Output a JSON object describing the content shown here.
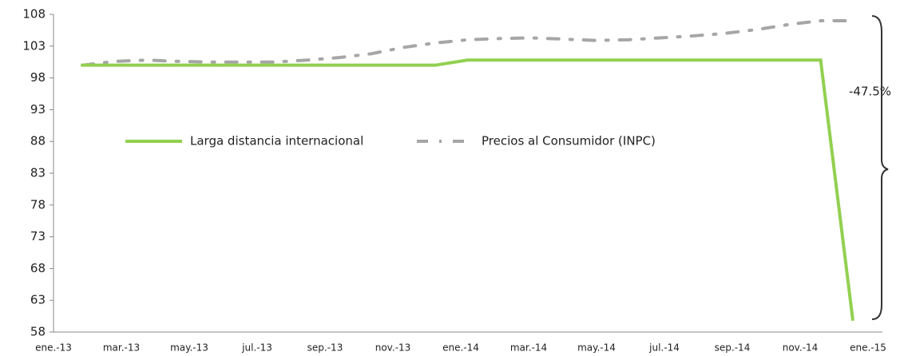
{
  "chart_data": {
    "type": "line",
    "categories": [
      "ene.-13",
      null,
      "mar.-13",
      null,
      "may.-13",
      null,
      "jul.-13",
      null,
      "sep.-13",
      null,
      "nov.-13",
      null,
      "ene.-14",
      null,
      "mar.-14",
      null,
      "may.-14",
      null,
      "jul.-14",
      null,
      "sep.-14",
      null,
      "nov.-14",
      null,
      "ene.-15"
    ],
    "series": [
      {
        "name": "Larga distancia internacional",
        "color": "#92d050",
        "dash": "solid",
        "values": [
          100,
          100,
          100,
          100,
          100,
          100,
          100,
          100,
          100,
          100,
          100,
          100,
          100.8,
          100.8,
          100.8,
          100.8,
          100.8,
          100.8,
          100.8,
          100.8,
          100.8,
          100.8,
          100.8,
          100.8,
          60
        ]
      },
      {
        "name": "Precios al Consumidor (INPC)",
        "color": "#a6a6a6",
        "dash": "dashdot",
        "values": [
          100,
          100.6,
          100.8,
          100.6,
          100.5,
          100.5,
          100.5,
          100.8,
          101.2,
          101.8,
          102.8,
          103.5,
          104.0,
          104.2,
          104.3,
          104.1,
          103.9,
          104.0,
          104.3,
          104.6,
          105.0,
          105.6,
          106.4,
          107.0,
          107.0
        ]
      }
    ],
    "annotations": [
      {
        "text": "-47.5%"
      }
    ],
    "ylim": [
      58,
      108
    ],
    "yticks": [
      58,
      63,
      68,
      73,
      78,
      83,
      88,
      93,
      98,
      103,
      108
    ],
    "grid": false,
    "legend": "top-left"
  }
}
